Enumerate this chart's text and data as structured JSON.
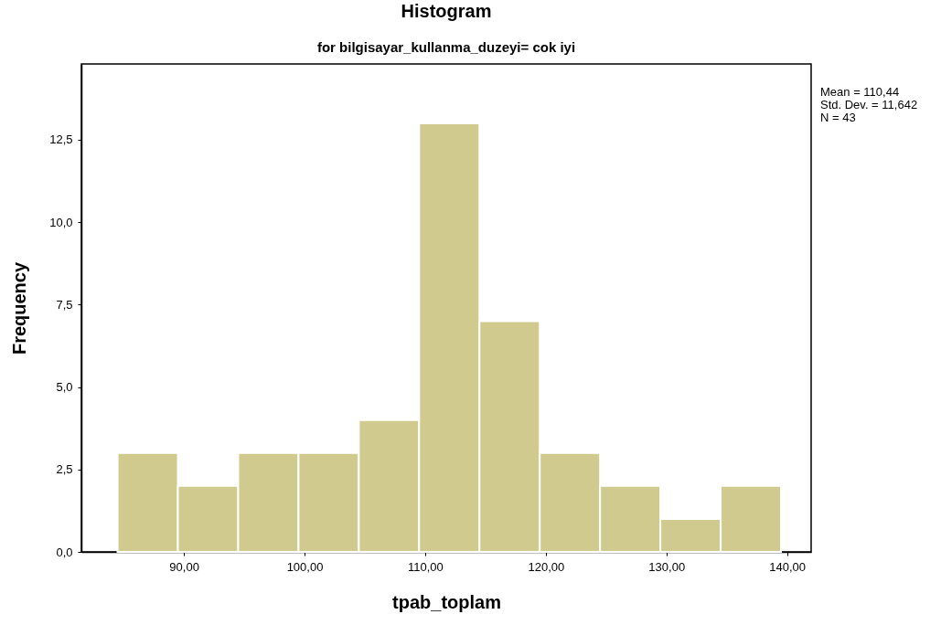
{
  "chart_data": {
    "type": "histogram",
    "title": "Histogram",
    "subtitle": "for bilgisayar_kullanma_duzeyi= cok iyi",
    "xlabel": "tpab_toplam",
    "ylabel": "Frequency",
    "bins": [
      84.5,
      89.5,
      94.5,
      99.5,
      104.5,
      109.5,
      114.5,
      119.5,
      124.5,
      129.5,
      134.5,
      139.5
    ],
    "values": [
      3,
      2,
      3,
      3,
      4,
      13,
      7,
      3,
      2,
      1,
      2
    ],
    "color": "#d0ca8e",
    "xlim": [
      81.5,
      142
    ],
    "xticks": [
      {
        "value": 90,
        "label": "90,00"
      },
      {
        "value": 100,
        "label": "100,00"
      },
      {
        "value": 110,
        "label": "110,00"
      },
      {
        "value": 120,
        "label": "120,00"
      },
      {
        "value": 130,
        "label": "130,00"
      },
      {
        "value": 140,
        "label": "140,00"
      }
    ],
    "ylim": [
      0,
      14.8
    ],
    "yticks": [
      {
        "value": 0,
        "label": "0,0"
      },
      {
        "value": 2.5,
        "label": "2,5"
      },
      {
        "value": 5,
        "label": "5,0"
      },
      {
        "value": 7.5,
        "label": "7,5"
      },
      {
        "value": 10,
        "label": "10,0"
      },
      {
        "value": 12.5,
        "label": "12,5"
      }
    ],
    "grid": false,
    "annotations": [
      "Mean = 110,44",
      "Std. Dev. = 11,642",
      "N = 43"
    ]
  }
}
